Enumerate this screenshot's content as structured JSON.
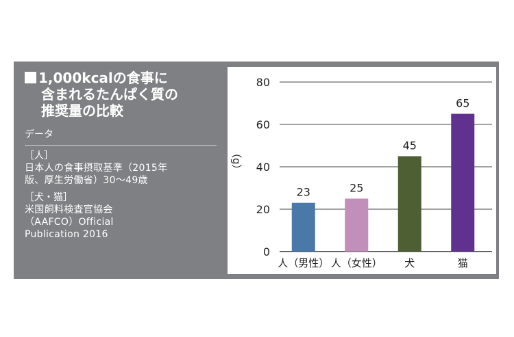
{
  "info": {
    "title_mark": "■",
    "title_line1": "1,000kcalの食事に",
    "title_line2": "含まれるたんぱく質の",
    "title_line3": "推奨量の比較",
    "data_label": "データ",
    "sources": [
      {
        "head": "［人］",
        "lines": [
          "日本人の食事摂取基準（2015年",
          "版、厚生労働省）30〜49歳"
        ]
      },
      {
        "head": "［犬・猫］",
        "lines": [
          "米国飼料検査官協会",
          "（AAFCO）Official",
          "Publication 2016"
        ]
      }
    ]
  },
  "chart_data": {
    "type": "bar",
    "title": "",
    "xlabel": "",
    "ylabel": "（g）",
    "ylim": [
      0,
      80
    ],
    "yticks": [
      0,
      20,
      40,
      60,
      80
    ],
    "grid": true,
    "categories": [
      "人（男性）",
      "人（女性）",
      "犬",
      "猫"
    ],
    "values": [
      23,
      25,
      45,
      65
    ],
    "data_labels": [
      "23",
      "25",
      "45",
      "65"
    ],
    "colors": [
      "#4a78a8",
      "#c28fba",
      "#4d5f33",
      "#60318e"
    ]
  }
}
